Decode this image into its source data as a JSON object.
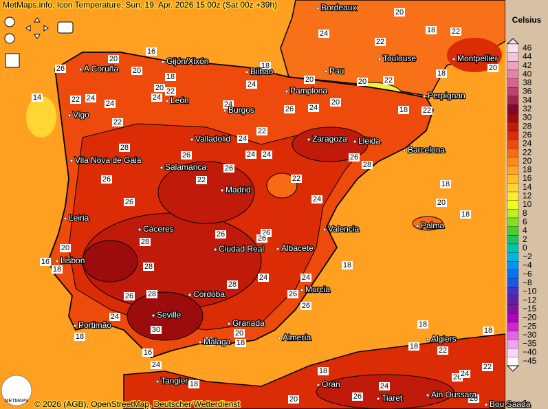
{
  "header": {
    "title": "MetMaps.info, Icon Temperature, Sun, 19. Apr. 2026 15:00z (Sat 00z +39h)"
  },
  "legend": {
    "unit": "Celsius",
    "items": [
      {
        "label": "46",
        "color": "#f8e0ec"
      },
      {
        "label": "44",
        "color": "#f4c4d8"
      },
      {
        "label": "42",
        "color": "#eea4c0"
      },
      {
        "label": "40",
        "color": "#e484a4"
      },
      {
        "label": "38",
        "color": "#d46488"
      },
      {
        "label": "36",
        "color": "#c0406c"
      },
      {
        "label": "34",
        "color": "#a42450"
      },
      {
        "label": "32",
        "color": "#800828"
      },
      {
        "label": "30",
        "color": "#9c0c0c"
      },
      {
        "label": "28",
        "color": "#c01a0a"
      },
      {
        "label": "26",
        "color": "#dc2c06"
      },
      {
        "label": "24",
        "color": "#ee4a0c"
      },
      {
        "label": "22",
        "color": "#f86a14"
      },
      {
        "label": "20",
        "color": "#ff8a1c"
      },
      {
        "label": "18",
        "color": "#ffa424"
      },
      {
        "label": "16",
        "color": "#ffbe2c"
      },
      {
        "label": "14",
        "color": "#ffd634"
      },
      {
        "label": "12",
        "color": "#ffec30"
      },
      {
        "label": "10",
        "color": "#f0fc20"
      },
      {
        "label": "8",
        "color": "#bcf020"
      },
      {
        "label": "6",
        "color": "#80e024"
      },
      {
        "label": "4",
        "color": "#44d030"
      },
      {
        "label": "2",
        "color": "#20c060"
      },
      {
        "label": "0",
        "color": "#00c4b0"
      },
      {
        "label": "−2",
        "color": "#00b4e4"
      },
      {
        "label": "−4",
        "color": "#0094f4"
      },
      {
        "label": "−6",
        "color": "#0074f0"
      },
      {
        "label": "−8",
        "color": "#2054e0"
      },
      {
        "label": "−10",
        "color": "#4034c0"
      },
      {
        "label": "−12",
        "color": "#6020a4"
      },
      {
        "label": "−15",
        "color": "#8410a0"
      },
      {
        "label": "−20",
        "color": "#b000c0"
      },
      {
        "label": "−25",
        "color": "#d024d0"
      },
      {
        "label": "−30",
        "color": "#e464e4"
      },
      {
        "label": "−35",
        "color": "#f0a4f0"
      },
      {
        "label": "−40",
        "color": "#f8d4f8"
      },
      {
        "label": "−45",
        "color": "#ffffff"
      }
    ]
  },
  "cities": [
    "Bordeaux",
    "A Coruña",
    "Gijón/Xixón",
    "Bilbao",
    "Pau",
    "Toulouse",
    "Montpellier",
    "Pamplona",
    "Perpignan",
    "León",
    "Burgos",
    "Vigo",
    "Valladolid",
    "Zaragoza",
    "Lleida",
    "Barcelona",
    "Vila Nova de Gaia",
    "Salamanca",
    "Madrid",
    "Leiria",
    "Palma",
    "Cáceres",
    "Valencia",
    "Ciudad Real",
    "Albacete",
    "Lisbon",
    "Murcia",
    "Córdoba",
    "Seville",
    "Granada",
    "Portimão",
    "Málaga",
    "Almería",
    "Algiers",
    "Tangier",
    "Oran",
    "Tiaret",
    "Ain Oussara",
    "Bou Saada"
  ],
  "contour_labels": [
    "20",
    "18",
    "22",
    "24",
    "22",
    "16",
    "26",
    "20",
    "20",
    "18",
    "18",
    "20",
    "22",
    "24",
    "24",
    "20",
    "20",
    "22",
    "18",
    "20",
    "14",
    "22",
    "24",
    "24",
    "22",
    "26",
    "24",
    "20",
    "18",
    "22",
    "24",
    "22",
    "24",
    "28",
    "24",
    "24",
    "26",
    "26",
    "28",
    "26",
    "22",
    "22",
    "26",
    "24",
    "26",
    "18",
    "20",
    "18",
    "26",
    "26",
    "28",
    "26",
    "20",
    "16",
    "18",
    "18",
    "28",
    "24",
    "28",
    "24",
    "26",
    "28",
    "26",
    "26",
    "30",
    "24",
    "18",
    "20",
    "18",
    "22",
    "18",
    "18",
    "18",
    "22",
    "16",
    "24",
    "18",
    "18",
    "26",
    "24",
    "22",
    "26",
    "24",
    "20",
    "28"
  ],
  "footer": {
    "copyright": "© 2026 (AGB), OpenStreetMap, Deutscher Wetterdienst",
    "logo": "METMAPS"
  }
}
